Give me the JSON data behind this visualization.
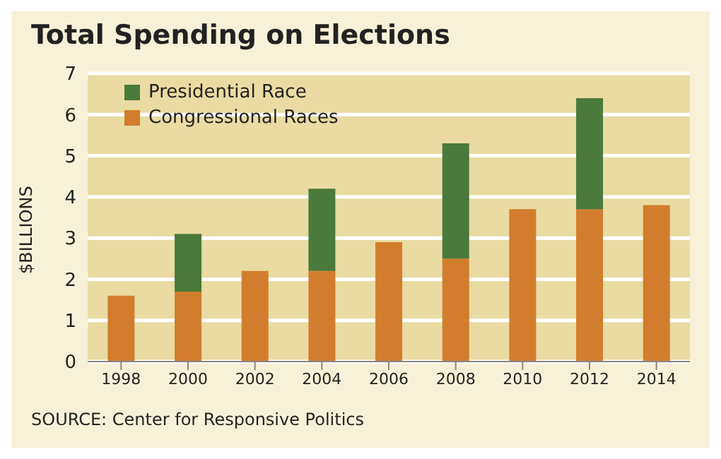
{
  "chart_data": {
    "type": "bar",
    "title": "Total Spending on Elections",
    "ylabel": "$BILLIONS",
    "categories": [
      "1998",
      "2000",
      "2002",
      "2004",
      "2006",
      "2008",
      "2010",
      "2012",
      "2014"
    ],
    "stacked": true,
    "series": [
      {
        "name": "Congressional Races",
        "color": "#d27d2d",
        "values": [
          1.6,
          1.7,
          2.2,
          2.2,
          2.9,
          2.5,
          3.7,
          3.7,
          3.8
        ]
      },
      {
        "name": "Presidential Race",
        "color": "#4a7a3a",
        "values": [
          null,
          1.4,
          null,
          2.0,
          null,
          2.8,
          null,
          2.7,
          null
        ]
      }
    ],
    "ylim": [
      0,
      7
    ],
    "yticks": [
      0,
      1,
      2,
      3,
      4,
      5,
      6,
      7
    ],
    "grid": "y",
    "legend": "top left",
    "annotations": [
      "SOURCE: Center for Responsive Politics"
    ]
  }
}
